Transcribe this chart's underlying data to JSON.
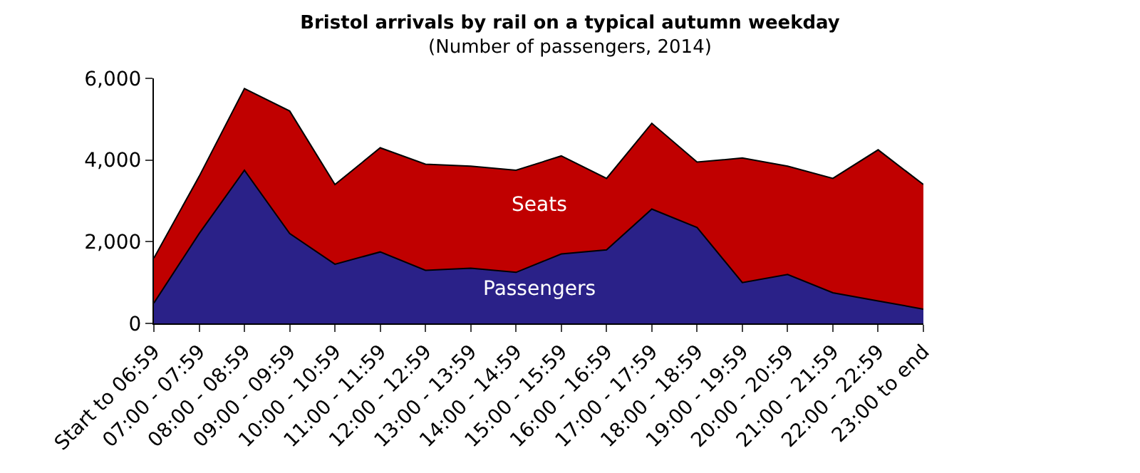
{
  "chart_data": {
    "type": "area",
    "title": "Bristol arrivals by rail on a typical autumn weekday",
    "subtitle": "(Number of passengers, 2014)",
    "categories": [
      "Start to 06:59",
      "07:00 - 07:59",
      "08:00 - 08:59",
      "09:00 - 09:59",
      "10:00 - 10:59",
      "11:00 - 11:59",
      "12:00 - 12:59",
      "13:00 - 13:59",
      "14:00 - 14:59",
      "15:00 - 15:59",
      "16:00 - 16:59",
      "17:00 - 17:59",
      "18:00 - 18:59",
      "19:00 - 19:59",
      "20:00 - 20:59",
      "21:00 - 21:59",
      "22:00 - 22:59",
      "23:00 to end"
    ],
    "series": [
      {
        "name": "Seats",
        "color": "#c00000",
        "values": [
          1600,
          3600,
          5750,
          5200,
          3400,
          4300,
          3900,
          3850,
          3750,
          4100,
          3550,
          4900,
          3950,
          4050,
          3850,
          3550,
          4250,
          3400
        ]
      },
      {
        "name": "Passengers",
        "color": "#2a2188",
        "values": [
          500,
          2200,
          3750,
          2200,
          1450,
          1750,
          1300,
          1350,
          1250,
          1700,
          1800,
          2800,
          2350,
          1000,
          1200,
          750,
          550,
          350
        ]
      }
    ],
    "ylim": [
      0,
      6000
    ],
    "yticks": [
      {
        "value": 0,
        "label": "0"
      },
      {
        "value": 2000,
        "label": "2,000"
      },
      {
        "value": 4000,
        "label": "4,000"
      },
      {
        "value": 6000,
        "label": "6,000"
      }
    ],
    "legend": false
  }
}
